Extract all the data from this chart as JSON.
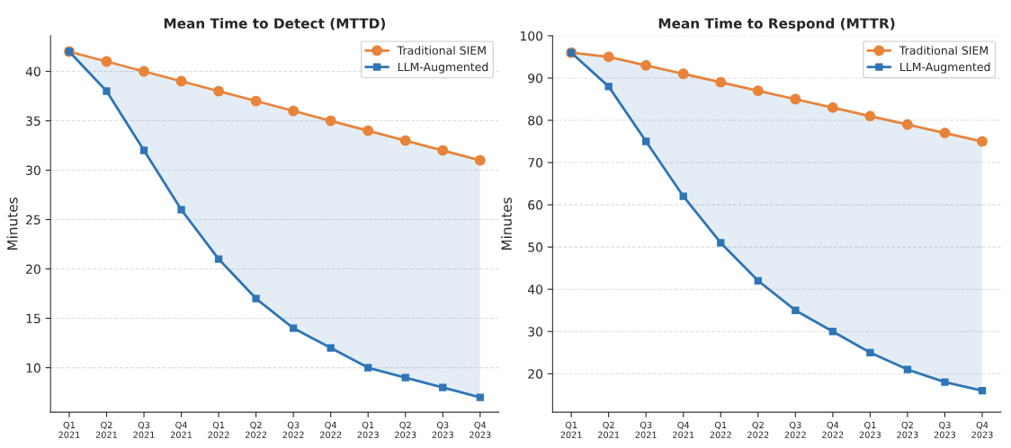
{
  "chart_data": [
    {
      "type": "line",
      "title": "Mean Time to Detect (MTTD)",
      "ylabel": "Minutes",
      "categories": [
        "Q1\n2021",
        "Q2\n2021",
        "Q3\n2021",
        "Q4\n2021",
        "Q1\n2022",
        "Q2\n2022",
        "Q3\n2022",
        "Q4\n2022",
        "Q1\n2023",
        "Q2\n2023",
        "Q3\n2023",
        "Q4\n2023"
      ],
      "series": [
        {
          "name": "Traditional SIEM",
          "color": "#e8833a",
          "marker": "circle",
          "values": [
            42,
            41,
            40,
            39,
            38,
            37,
            36,
            35,
            34,
            33,
            32,
            31
          ]
        },
        {
          "name": "LLM-Augmented",
          "color": "#2f75b5",
          "marker": "square",
          "values": [
            42,
            38,
            32,
            26,
            21,
            17,
            14,
            12,
            10,
            9,
            8,
            7
          ],
          "lower": [
            42,
            38,
            32,
            26,
            21,
            17,
            14,
            12,
            10,
            9,
            8,
            7
          ],
          "upper": [
            42,
            41,
            40,
            39,
            38,
            37,
            36,
            35,
            34,
            33,
            32,
            31
          ]
        }
      ],
      "ylim": [
        5.5,
        43.6
      ],
      "yticks": [
        10,
        15,
        20,
        25,
        30,
        35,
        40
      ],
      "grid": "y",
      "legend": "top right",
      "line_style": "solid"
    },
    {
      "type": "line",
      "title": "Mean Time to Respond (MTTR)",
      "ylabel": "Minutes",
      "categories": [
        "Q1\n2021",
        "Q2\n2021",
        "Q3\n2021",
        "Q4\n2021",
        "Q1\n2022",
        "Q2\n2022",
        "Q3\n2022",
        "Q4\n2022",
        "Q1\n2023",
        "Q2\n2023",
        "Q3\n2023",
        "Q4\n2023"
      ],
      "series": [
        {
          "name": "Traditional SIEM",
          "color": "#e8833a",
          "marker": "circle",
          "values": [
            96,
            95,
            93,
            91,
            89,
            87,
            85,
            83,
            81,
            79,
            77,
            75
          ]
        },
        {
          "name": "LLM-Augmented",
          "color": "#2f75b5",
          "marker": "square",
          "values": [
            96,
            88,
            75,
            62,
            51,
            42,
            35,
            30,
            25,
            21,
            18,
            16
          ],
          "lower": [
            96,
            88,
            75,
            62,
            51,
            42,
            35,
            30,
            25,
            21,
            18,
            16
          ],
          "upper": [
            96,
            95,
            93,
            91,
            89,
            87,
            85,
            83,
            81,
            79,
            77,
            75
          ]
        }
      ],
      "ylim": [
        10.9,
        100
      ],
      "yticks": [
        20,
        30,
        40,
        50,
        60,
        70,
        80,
        90,
        100
      ],
      "grid": "y",
      "legend": "top right",
      "line_style": "solid"
    }
  ]
}
